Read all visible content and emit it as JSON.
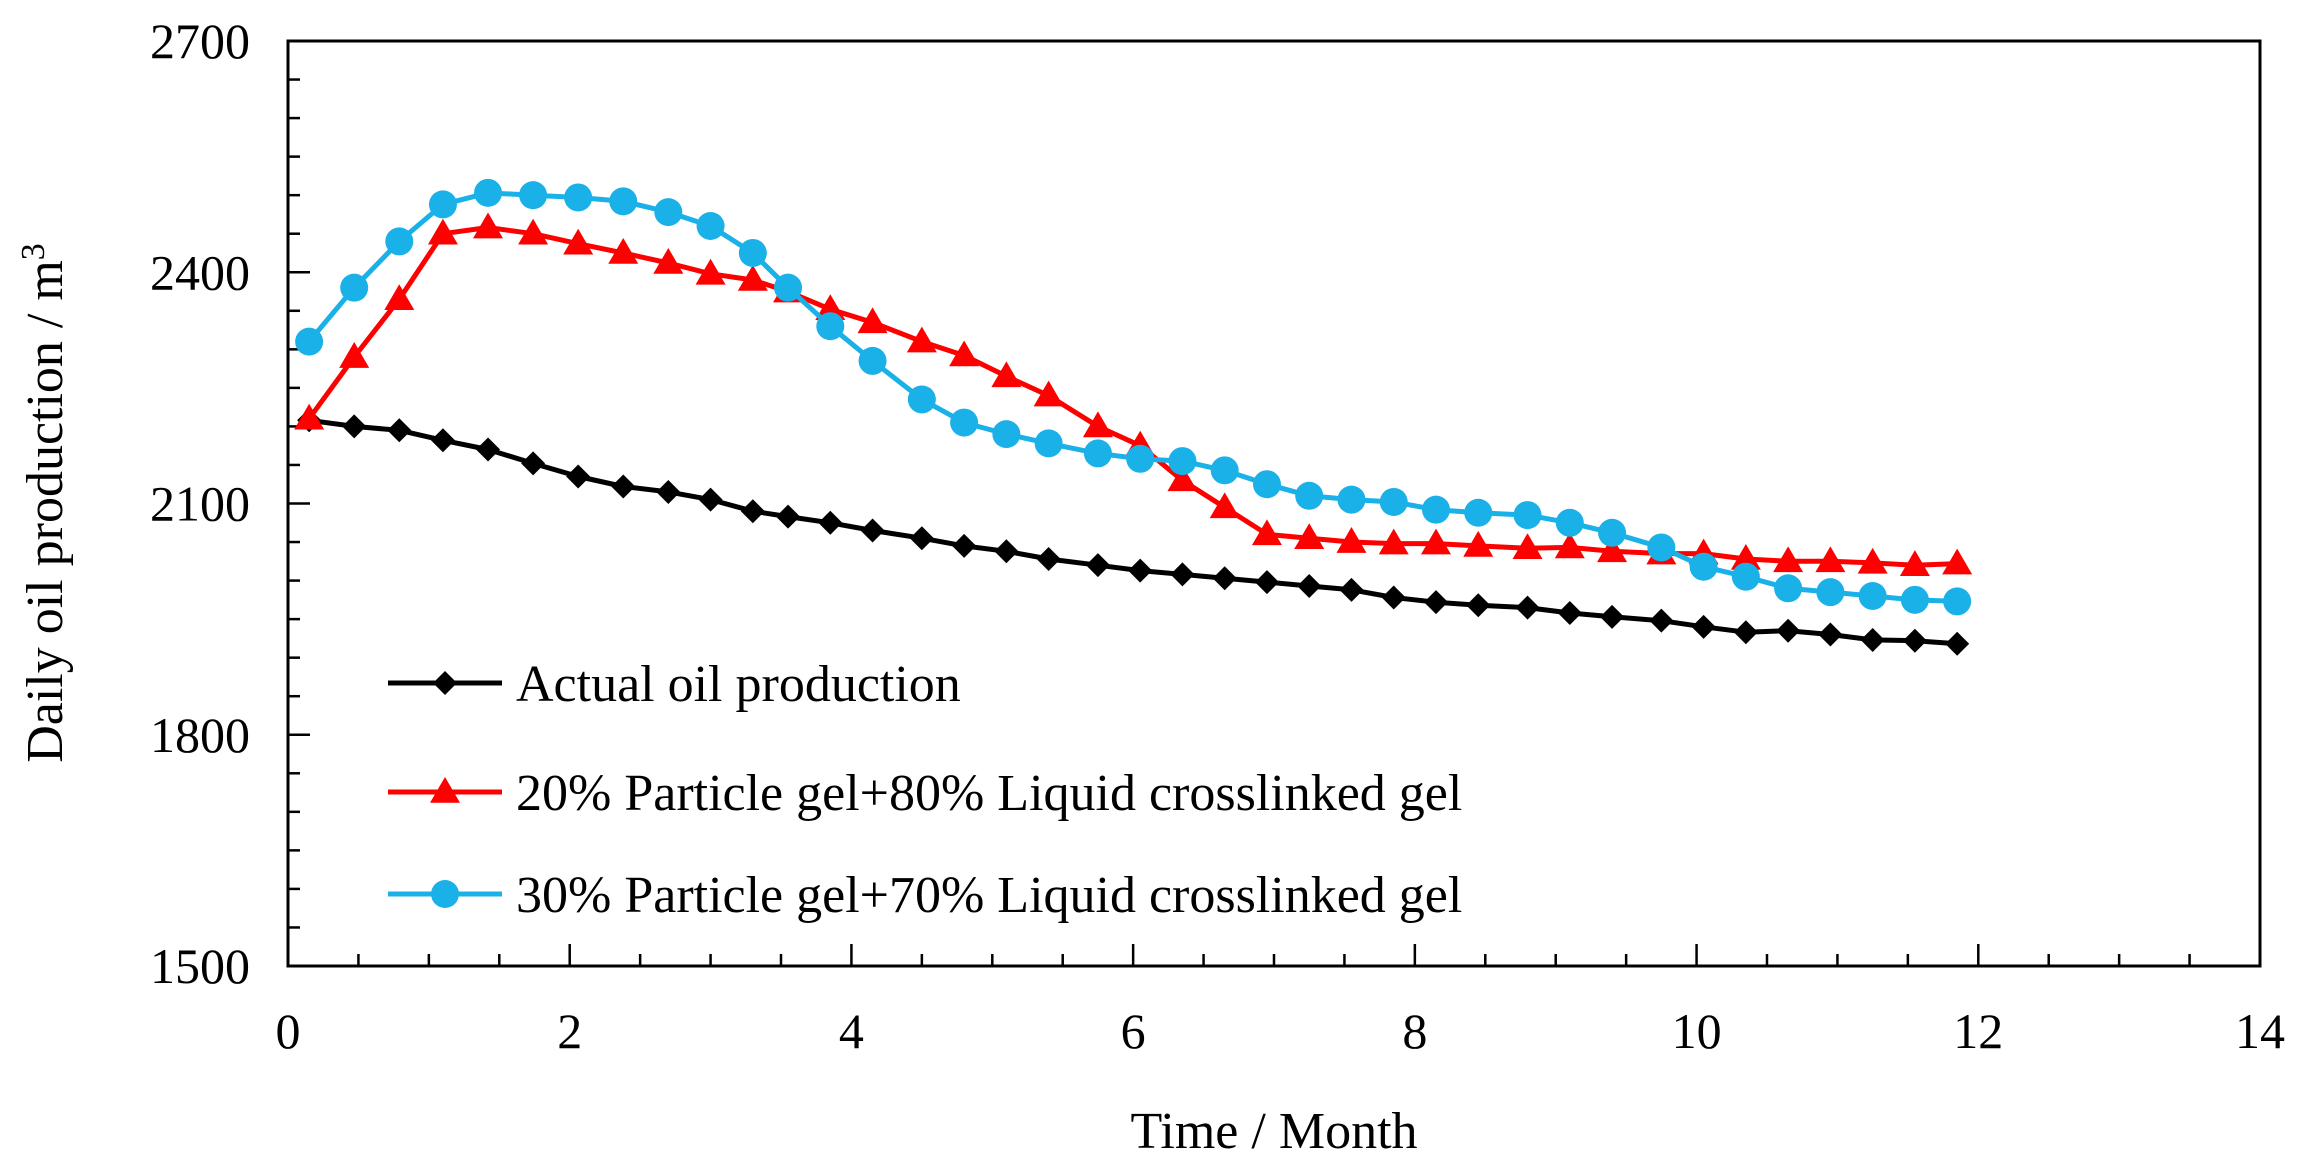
{
  "chart_data": {
    "type": "line",
    "title": "",
    "xlabel": "Time /  Month",
    "ylabel": "Daily oil production / m",
    "ylabel_superscript": "3",
    "xlim": [
      0,
      14
    ],
    "ylim": [
      1500,
      2700
    ],
    "x_ticks": [
      "0",
      "2",
      "4",
      "6",
      "8",
      "10",
      "12",
      "14"
    ],
    "y_ticks": [
      "1500",
      "1800",
      "2100",
      "2400",
      "2700"
    ],
    "legend_position": "bottom-left",
    "grid": false,
    "series": [
      {
        "name": "Actual oil production",
        "color": "#000000",
        "marker": "diamond",
        "x": [
          0.15,
          0.47,
          0.79,
          1.1,
          1.42,
          1.74,
          2.06,
          2.38,
          2.7,
          3.0,
          3.3,
          3.55,
          3.85,
          4.15,
          4.5,
          4.8,
          5.1,
          5.4,
          5.75,
          6.05,
          6.35,
          6.65,
          6.95,
          7.25,
          7.55,
          7.85,
          8.15,
          8.45,
          8.8,
          9.1,
          9.4,
          9.75,
          10.05,
          10.35,
          10.65,
          10.95,
          11.25,
          11.55,
          11.85
        ],
        "values": [
          2208,
          2200,
          2195,
          2182,
          2170,
          2152,
          2135,
          2122,
          2115,
          2105,
          2090,
          2083,
          2075,
          2065,
          2055,
          2045,
          2038,
          2028,
          2020,
          2013,
          2008,
          2003,
          1998,
          1993,
          1988,
          1978,
          1972,
          1968,
          1965,
          1958,
          1953,
          1948,
          1940,
          1933,
          1935,
          1930,
          1923,
          1922,
          1918
        ]
      },
      {
        "name": "20% Particle gel+80% Liquid crosslinked gel",
        "color": "#ff0000",
        "marker": "triangle",
        "x": [
          0.15,
          0.47,
          0.79,
          1.1,
          1.42,
          1.74,
          2.06,
          2.38,
          2.7,
          3.0,
          3.3,
          3.55,
          3.85,
          4.15,
          4.5,
          4.8,
          5.1,
          5.4,
          5.75,
          6.05,
          6.35,
          6.65,
          6.95,
          7.25,
          7.55,
          7.85,
          8.15,
          8.45,
          8.8,
          9.1,
          9.4,
          9.75,
          10.05,
          10.35,
          10.65,
          10.95,
          11.25,
          11.55,
          11.85
        ],
        "values": [
          2210,
          2290,
          2365,
          2450,
          2458,
          2450,
          2437,
          2425,
          2412,
          2398,
          2390,
          2375,
          2352,
          2335,
          2310,
          2292,
          2265,
          2240,
          2200,
          2175,
          2130,
          2095,
          2060,
          2055,
          2050,
          2048,
          2048,
          2045,
          2042,
          2043,
          2038,
          2035,
          2035,
          2028,
          2025,
          2025,
          2023,
          2020,
          2022
        ]
      },
      {
        "name": "30% Particle gel+70% Liquid crosslinked gel",
        "color": "#1ab0e8",
        "marker": "circle",
        "x": [
          0.15,
          0.47,
          0.79,
          1.1,
          1.42,
          1.74,
          2.06,
          2.38,
          2.7,
          3.0,
          3.3,
          3.55,
          3.85,
          4.15,
          4.5,
          4.8,
          5.1,
          5.4,
          5.75,
          6.05,
          6.35,
          6.65,
          6.95,
          7.25,
          7.55,
          7.85,
          8.15,
          8.45,
          8.8,
          9.1,
          9.4,
          9.75,
          10.05,
          10.35,
          10.65,
          10.95,
          11.25,
          11.55,
          11.85
        ],
        "values": [
          2310,
          2380,
          2440,
          2488,
          2503,
          2500,
          2497,
          2492,
          2478,
          2460,
          2425,
          2380,
          2330,
          2285,
          2235,
          2205,
          2190,
          2178,
          2165,
          2158,
          2155,
          2143,
          2125,
          2110,
          2105,
          2102,
          2092,
          2088,
          2085,
          2075,
          2062,
          2043,
          2018,
          2005,
          1990,
          1985,
          1980,
          1975,
          1973
        ]
      }
    ]
  }
}
